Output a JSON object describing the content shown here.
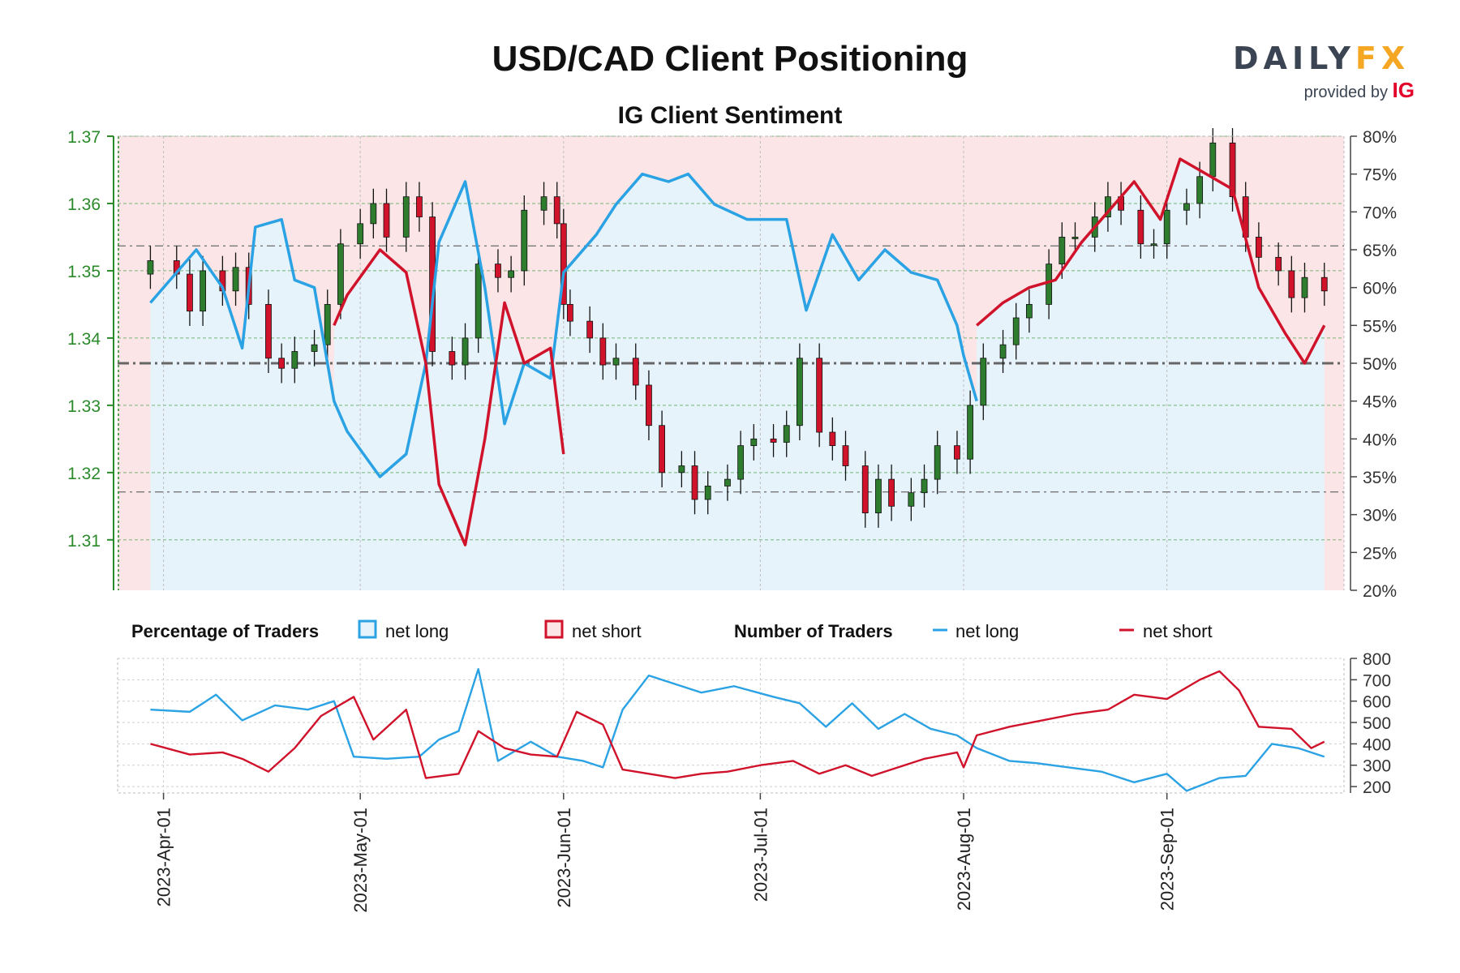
{
  "title": "USD/CAD Client Positioning",
  "subtitle": "IG Client Sentiment",
  "brand": {
    "name_part1": "DAILY",
    "name_part2": "FX",
    "provided_by": "provided by",
    "provider": "IG"
  },
  "colors": {
    "net_long": "#2aa2e4",
    "net_short": "#d0122b",
    "long_bg": "#e6f3fb",
    "short_bg": "#fbe5e6",
    "candle_up": "#2e7d2e",
    "candle_down": "#d0122b",
    "price_axis": "#2a8a2a"
  },
  "chart_data": [
    {
      "type": "candlestick",
      "title": "IG Client Sentiment",
      "x_dates": [
        "2023-04-01",
        "2023-05-01",
        "2023-06-01",
        "2023-07-01",
        "2023-08-01",
        "2023-09-01"
      ],
      "x_tick_labels": [
        "2023-Apr-01",
        "2023-May-01",
        "2023-Jun-01",
        "2023-Jul-01",
        "2023-Aug-01",
        "2023-Sep-01"
      ],
      "price_ticks": [
        "1.31",
        "1.32",
        "1.33",
        "1.34",
        "1.35",
        "1.36",
        "1.37"
      ],
      "price_range": [
        1.3025,
        1.37
      ],
      "pct_ticks": [
        "20%",
        "25%",
        "30%",
        "35%",
        "40%",
        "45%",
        "50%",
        "55%",
        "60%",
        "65%",
        "70%",
        "75%",
        "80%"
      ],
      "pct_range": [
        20,
        80
      ],
      "price_close": [
        [
          "2023-03-30",
          1.3515
        ],
        [
          "2023-04-03",
          1.3495
        ],
        [
          "2023-04-05",
          1.344
        ],
        [
          "2023-04-07",
          1.35
        ],
        [
          "2023-04-10",
          1.347
        ],
        [
          "2023-04-12",
          1.3505
        ],
        [
          "2023-04-14",
          1.345
        ],
        [
          "2023-04-17",
          1.337
        ],
        [
          "2023-04-19",
          1.3355
        ],
        [
          "2023-04-21",
          1.338
        ],
        [
          "2023-04-24",
          1.339
        ],
        [
          "2023-04-26",
          1.345
        ],
        [
          "2023-04-28",
          1.354
        ],
        [
          "2023-05-01",
          1.357
        ],
        [
          "2023-05-03",
          1.36
        ],
        [
          "2023-05-05",
          1.355
        ],
        [
          "2023-05-08",
          1.361
        ],
        [
          "2023-05-10",
          1.358
        ],
        [
          "2023-05-12",
          1.338
        ],
        [
          "2023-05-15",
          1.336
        ],
        [
          "2023-05-17",
          1.34
        ],
        [
          "2023-05-19",
          1.351
        ],
        [
          "2023-05-22",
          1.349
        ],
        [
          "2023-05-24",
          1.35
        ],
        [
          "2023-05-26",
          1.359
        ],
        [
          "2023-05-29",
          1.361
        ],
        [
          "2023-05-31",
          1.357
        ],
        [
          "2023-06-01",
          1.345
        ],
        [
          "2023-06-02",
          1.3425
        ],
        [
          "2023-06-05",
          1.34
        ],
        [
          "2023-06-07",
          1.336
        ],
        [
          "2023-06-09",
          1.337
        ],
        [
          "2023-06-12",
          1.333
        ],
        [
          "2023-06-14",
          1.327
        ],
        [
          "2023-06-16",
          1.32
        ],
        [
          "2023-06-19",
          1.321
        ],
        [
          "2023-06-21",
          1.316
        ],
        [
          "2023-06-23",
          1.318
        ],
        [
          "2023-06-26",
          1.319
        ],
        [
          "2023-06-28",
          1.324
        ],
        [
          "2023-06-30",
          1.325
        ],
        [
          "2023-07-03",
          1.3245
        ],
        [
          "2023-07-05",
          1.327
        ],
        [
          "2023-07-07",
          1.337
        ],
        [
          "2023-07-10",
          1.326
        ],
        [
          "2023-07-12",
          1.324
        ],
        [
          "2023-07-14",
          1.321
        ],
        [
          "2023-07-17",
          1.314
        ],
        [
          "2023-07-19",
          1.319
        ],
        [
          "2023-07-21",
          1.315
        ],
        [
          "2023-07-24",
          1.317
        ],
        [
          "2023-07-26",
          1.319
        ],
        [
          "2023-07-28",
          1.324
        ],
        [
          "2023-07-31",
          1.322
        ],
        [
          "2023-08-02",
          1.33
        ],
        [
          "2023-08-04",
          1.337
        ],
        [
          "2023-08-07",
          1.339
        ],
        [
          "2023-08-09",
          1.343
        ],
        [
          "2023-08-11",
          1.345
        ],
        [
          "2023-08-14",
          1.351
        ],
        [
          "2023-08-16",
          1.355
        ],
        [
          "2023-08-18",
          1.355
        ],
        [
          "2023-08-21",
          1.358
        ],
        [
          "2023-08-23",
          1.361
        ],
        [
          "2023-08-25",
          1.359
        ],
        [
          "2023-08-28",
          1.354
        ],
        [
          "2023-08-30",
          1.354
        ],
        [
          "2023-09-01",
          1.359
        ],
        [
          "2023-09-04",
          1.36
        ],
        [
          "2023-09-06",
          1.364
        ],
        [
          "2023-09-08",
          1.369
        ],
        [
          "2023-09-11",
          1.361
        ],
        [
          "2023-09-13",
          1.355
        ],
        [
          "2023-09-15",
          1.352
        ],
        [
          "2023-09-18",
          1.35
        ],
        [
          "2023-09-20",
          1.346
        ],
        [
          "2023-09-22",
          1.349
        ],
        [
          "2023-09-25",
          1.347
        ]
      ],
      "net_long_pct": [
        [
          "2023-03-30",
          58
        ],
        [
          "2023-04-03",
          62
        ],
        [
          "2023-04-06",
          65
        ],
        [
          "2023-04-10",
          60
        ],
        [
          "2023-04-13",
          52
        ],
        [
          "2023-04-15",
          68
        ],
        [
          "2023-04-19",
          69
        ],
        [
          "2023-04-21",
          61
        ],
        [
          "2023-04-24",
          60
        ],
        [
          "2023-04-27",
          45
        ],
        [
          "2023-04-29",
          41
        ],
        [
          "2023-05-04",
          35
        ],
        [
          "2023-05-08",
          38
        ],
        [
          "2023-05-11",
          50
        ],
        [
          "2023-05-13",
          66
        ],
        [
          "2023-05-17",
          74
        ],
        [
          "2023-05-20",
          60
        ],
        [
          "2023-05-23",
          42
        ],
        [
          "2023-05-26",
          50
        ],
        [
          "2023-05-30",
          48
        ],
        [
          "2023-06-01",
          62
        ],
        [
          "2023-06-06",
          67
        ],
        [
          "2023-06-09",
          71
        ],
        [
          "2023-06-13",
          75
        ],
        [
          "2023-06-17",
          74
        ],
        [
          "2023-06-20",
          75
        ],
        [
          "2023-06-24",
          71
        ],
        [
          "2023-06-29",
          69
        ],
        [
          "2023-07-05",
          69
        ],
        [
          "2023-07-08",
          57
        ],
        [
          "2023-07-12",
          67
        ],
        [
          "2023-07-16",
          61
        ],
        [
          "2023-07-20",
          65
        ],
        [
          "2023-07-24",
          62
        ],
        [
          "2023-07-28",
          61
        ],
        [
          "2023-07-31",
          55
        ],
        [
          "2023-08-01",
          51
        ],
        [
          "2023-08-03",
          45
        ]
      ],
      "net_short_pct": [
        [
          "2023-04-27",
          55
        ],
        [
          "2023-04-29",
          59
        ],
        [
          "2023-05-04",
          65
        ],
        [
          "2023-05-08",
          62
        ],
        [
          "2023-05-11",
          50
        ],
        [
          "2023-05-13",
          34
        ],
        [
          "2023-05-17",
          26
        ],
        [
          "2023-05-20",
          40
        ],
        [
          "2023-05-23",
          58
        ],
        [
          "2023-05-26",
          50
        ],
        [
          "2023-05-30",
          52
        ],
        [
          "2023-06-01",
          38
        ],
        [
          "2023-08-03",
          55
        ],
        [
          "2023-08-07",
          58
        ],
        [
          "2023-08-11",
          60
        ],
        [
          "2023-08-15",
          61
        ],
        [
          "2023-08-19",
          66
        ],
        [
          "2023-08-23",
          70
        ],
        [
          "2023-08-27",
          74
        ],
        [
          "2023-08-31",
          69
        ],
        [
          "2023-09-03",
          77
        ],
        [
          "2023-09-07",
          75
        ],
        [
          "2023-09-11",
          73
        ],
        [
          "2023-09-15",
          60
        ],
        [
          "2023-09-19",
          54
        ],
        [
          "2023-09-22",
          50
        ],
        [
          "2023-09-25",
          55
        ]
      ]
    },
    {
      "type": "line",
      "title": "Number of Traders",
      "y_ticks": [
        "200",
        "300",
        "400",
        "500",
        "600",
        "700",
        "800"
      ],
      "ylim": [
        170,
        800
      ],
      "series": [
        {
          "name": "net long",
          "color": "#2aa2e4",
          "points": [
            [
              "2023-03-30",
              560
            ],
            [
              "2023-04-05",
              550
            ],
            [
              "2023-04-09",
              630
            ],
            [
              "2023-04-13",
              510
            ],
            [
              "2023-04-18",
              580
            ],
            [
              "2023-04-23",
              560
            ],
            [
              "2023-04-27",
              600
            ],
            [
              "2023-04-30",
              340
            ],
            [
              "2023-05-05",
              330
            ],
            [
              "2023-05-10",
              340
            ],
            [
              "2023-05-13",
              420
            ],
            [
              "2023-05-16",
              460
            ],
            [
              "2023-05-19",
              750
            ],
            [
              "2023-05-22",
              320
            ],
            [
              "2023-05-27",
              410
            ],
            [
              "2023-05-31",
              340
            ],
            [
              "2023-06-04",
              320
            ],
            [
              "2023-06-07",
              290
            ],
            [
              "2023-06-10",
              560
            ],
            [
              "2023-06-14",
              720
            ],
            [
              "2023-06-18",
              680
            ],
            [
              "2023-06-22",
              640
            ],
            [
              "2023-06-27",
              670
            ],
            [
              "2023-07-03",
              620
            ],
            [
              "2023-07-07",
              590
            ],
            [
              "2023-07-11",
              480
            ],
            [
              "2023-07-15",
              590
            ],
            [
              "2023-07-19",
              470
            ],
            [
              "2023-07-23",
              540
            ],
            [
              "2023-07-27",
              470
            ],
            [
              "2023-07-31",
              440
            ],
            [
              "2023-08-03",
              380
            ],
            [
              "2023-08-08",
              320
            ],
            [
              "2023-08-12",
              310
            ],
            [
              "2023-08-17",
              290
            ],
            [
              "2023-08-22",
              270
            ],
            [
              "2023-08-27",
              220
            ],
            [
              "2023-09-01",
              260
            ],
            [
              "2023-09-04",
              180
            ],
            [
              "2023-09-09",
              240
            ],
            [
              "2023-09-13",
              250
            ],
            [
              "2023-09-17",
              400
            ],
            [
              "2023-09-21",
              380
            ],
            [
              "2023-09-25",
              340
            ]
          ]
        },
        {
          "name": "net short",
          "color": "#d0122b",
          "points": [
            [
              "2023-03-30",
              400
            ],
            [
              "2023-04-05",
              350
            ],
            [
              "2023-04-10",
              360
            ],
            [
              "2023-04-13",
              330
            ],
            [
              "2023-04-17",
              270
            ],
            [
              "2023-04-21",
              380
            ],
            [
              "2023-04-25",
              530
            ],
            [
              "2023-04-30",
              620
            ],
            [
              "2023-05-03",
              420
            ],
            [
              "2023-05-08",
              560
            ],
            [
              "2023-05-11",
              240
            ],
            [
              "2023-05-16",
              260
            ],
            [
              "2023-05-19",
              460
            ],
            [
              "2023-05-23",
              380
            ],
            [
              "2023-05-27",
              350
            ],
            [
              "2023-05-31",
              340
            ],
            [
              "2023-06-03",
              550
            ],
            [
              "2023-06-07",
              490
            ],
            [
              "2023-06-10",
              280
            ],
            [
              "2023-06-14",
              260
            ],
            [
              "2023-06-18",
              240
            ],
            [
              "2023-06-22",
              260
            ],
            [
              "2023-06-26",
              270
            ],
            [
              "2023-07-01",
              300
            ],
            [
              "2023-07-06",
              320
            ],
            [
              "2023-07-10",
              260
            ],
            [
              "2023-07-14",
              300
            ],
            [
              "2023-07-18",
              250
            ],
            [
              "2023-07-22",
              290
            ],
            [
              "2023-07-26",
              330
            ],
            [
              "2023-07-31",
              360
            ],
            [
              "2023-08-01",
              290
            ],
            [
              "2023-08-03",
              440
            ],
            [
              "2023-08-08",
              480
            ],
            [
              "2023-08-13",
              510
            ],
            [
              "2023-08-18",
              540
            ],
            [
              "2023-08-23",
              560
            ],
            [
              "2023-08-27",
              630
            ],
            [
              "2023-09-01",
              610
            ],
            [
              "2023-09-06",
              700
            ],
            [
              "2023-09-09",
              740
            ],
            [
              "2023-09-12",
              650
            ],
            [
              "2023-09-15",
              480
            ],
            [
              "2023-09-20",
              470
            ],
            [
              "2023-09-23",
              380
            ],
            [
              "2023-09-25",
              410
            ]
          ]
        }
      ]
    }
  ],
  "legend": {
    "percentage_title": "Percentage of Traders",
    "pct_long": "net long",
    "pct_short": "net short",
    "number_title": "Number of Traders",
    "num_long": "net long",
    "num_short": "net short"
  }
}
